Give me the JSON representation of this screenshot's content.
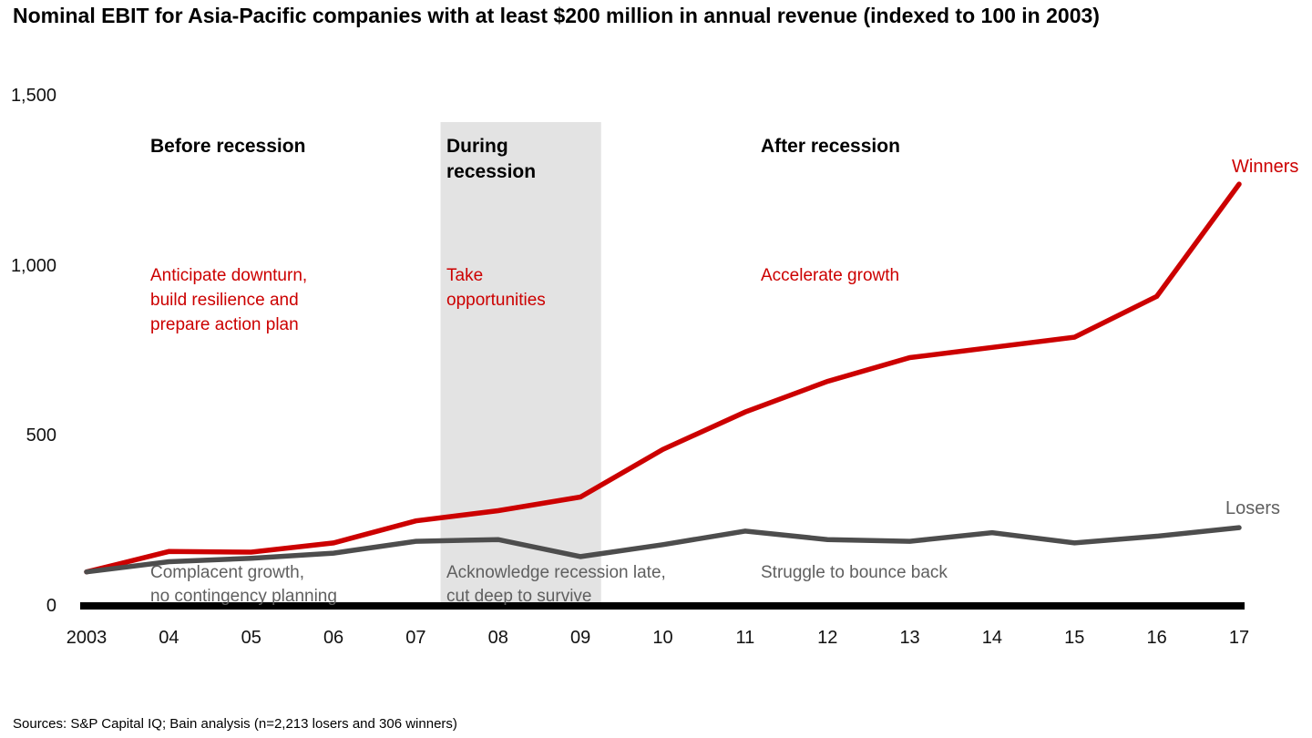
{
  "title": "Nominal EBIT for Asia-Pacific companies with at least $200 million in annual revenue (indexed to 100 in 2003)",
  "source": "Sources: S&P Capital IQ; Bain analysis (n=2,213 losers and 306 winners)",
  "phases": {
    "before": {
      "label": "Before recession",
      "red_note": "Anticipate downturn,\nbuild resilience and\nprepare action plan",
      "gray_note": "Complacent growth,\nno contingency planning"
    },
    "during": {
      "label": "During\nrecession",
      "red_note": "Take\nopportunities",
      "gray_note": "Acknowledge recession late,\ncut deep to survive"
    },
    "after": {
      "label": "After recession",
      "red_note": "Accelerate growth",
      "gray_note": "Struggle to bounce back"
    }
  },
  "colors": {
    "winners_red": "#cc0000",
    "losers_gray": "#4d4d4d",
    "gray_text": "#5f5f5f",
    "recession_band": "#e3e3e3",
    "axis_black": "#000000"
  },
  "chart_data": {
    "type": "line",
    "title": "Nominal EBIT for Asia-Pacific companies with at least $200 million in annual revenue (indexed to 100 in 2003)",
    "x_years": [
      2003,
      2004,
      2005,
      2006,
      2007,
      2008,
      2009,
      2010,
      2011,
      2012,
      2013,
      2014,
      2015,
      2016,
      2017
    ],
    "x_labels": [
      "2003",
      "04",
      "05",
      "06",
      "07",
      "08",
      "09",
      "10",
      "11",
      "12",
      "13",
      "14",
      "15",
      "16",
      "17"
    ],
    "ylim": [
      0,
      1500
    ],
    "yticks": [
      0,
      500,
      1000,
      1500
    ],
    "ytick_labels": [
      "0",
      "500",
      "1,000",
      "1,500"
    ],
    "grid": false,
    "legend": "line-end-labels",
    "recession_band": {
      "label": "During recession",
      "from_year": 2007.3,
      "to_year": 2009.25
    },
    "series": [
      {
        "name": "Winners",
        "color": "#cc0000",
        "values": [
          100,
          160,
          158,
          185,
          250,
          280,
          320,
          460,
          570,
          660,
          730,
          760,
          790,
          910,
          1240
        ]
      },
      {
        "name": "Losers",
        "color": "#4d4d4d",
        "values": [
          100,
          130,
          140,
          155,
          190,
          195,
          145,
          180,
          220,
          195,
          190,
          215,
          185,
          205,
          230
        ]
      }
    ]
  }
}
